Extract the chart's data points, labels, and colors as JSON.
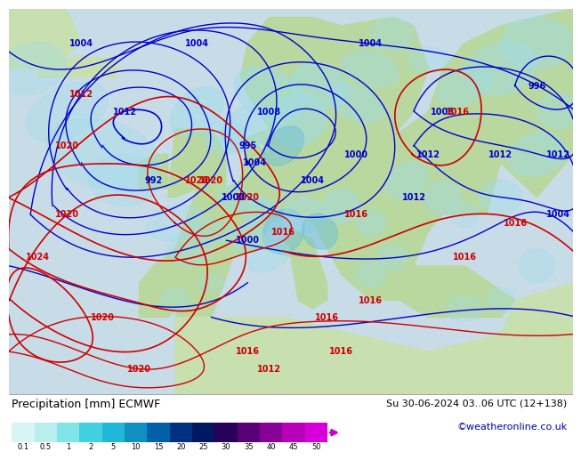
{
  "title_left": "Precipitation [mm] ECMWF",
  "title_right": "Su 30-06-2024 03..06 UTC (12+138)",
  "credit": "©weatheronline.co.uk",
  "colorbar_labels": [
    "0.1",
    "0.5",
    "1",
    "2",
    "5",
    "10",
    "15",
    "20",
    "25",
    "30",
    "35",
    "40",
    "45",
    "50"
  ],
  "colorbar_colors": [
    "#d8f4f4",
    "#b8eeee",
    "#80e4e8",
    "#40d0e0",
    "#20b8d8",
    "#1090c0",
    "#0060a8",
    "#003080",
    "#001860",
    "#280058",
    "#580078",
    "#880098",
    "#b800b8",
    "#d800d8"
  ],
  "ocean_color": "#c8dce8",
  "land_color": "#b8d8a0",
  "land_color2": "#c8e0b0",
  "precip_light": "#a0dce8",
  "precip_mid": "#70c0d8",
  "blue_isobar": "#0000cc",
  "red_isobar": "#cc0000",
  "credit_color": "#0000bb",
  "bg_white": "#f0f0f0",
  "title_fontsize": 9,
  "credit_fontsize": 8,
  "label_fontsize": 7,
  "isobar_fontsize": 7
}
